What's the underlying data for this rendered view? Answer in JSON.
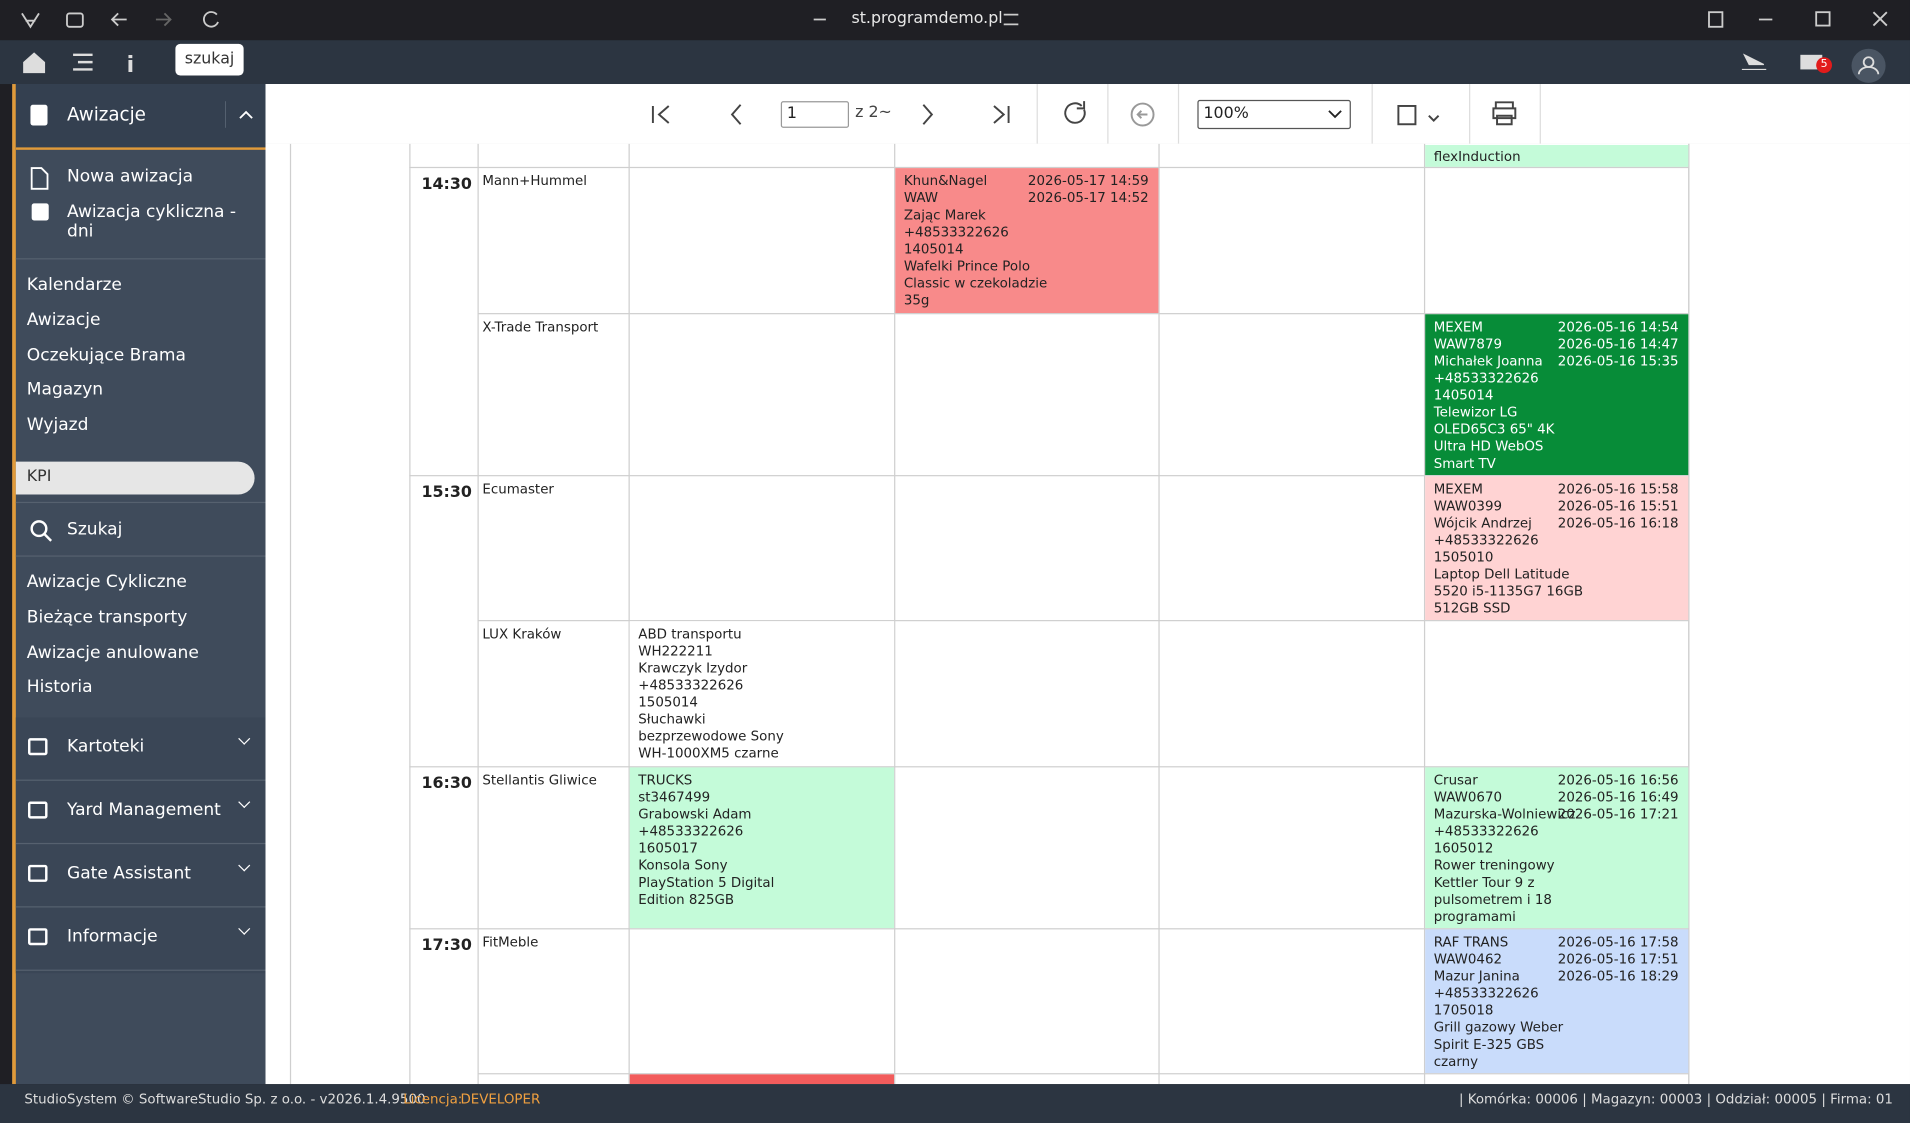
{
  "browser": {
    "url": "st.programdemo.pl"
  },
  "topbar": {
    "search": "szukaj",
    "mail_count": "5"
  },
  "sidebar": {
    "section": "Awizacje",
    "actions": [
      "Nowa awizacja",
      "Awizacja cykliczna - dni"
    ],
    "links": [
      "Kalendarze",
      "Awizacje",
      "Oczekujące Brama",
      "Magazyn",
      "Wyjazd"
    ],
    "kpi": "KPI",
    "search": "Szukaj",
    "links2": [
      "Awizacje Cykliczne",
      "Bieżące transporty",
      "Awizacje anulowane",
      "Historia"
    ],
    "groups": [
      "Kartoteki",
      "Yard Management",
      "Gate Assistant",
      "Informacje"
    ]
  },
  "toolbar": {
    "page": "1",
    "of": "z 2~",
    "zoom": "100%"
  },
  "schedule": {
    "rows": [
      {
        "time": null,
        "carrier": null,
        "cells": [
          null,
          null,
          null,
          {
            "color": "#c4fbd9",
            "lines": [
              "flexInduction"
            ],
            "times": []
          }
        ]
      },
      {
        "time": "14:30",
        "carrier": "Mann+Hummel",
        "cells": [
          null,
          {
            "color": "#f88a8a",
            "lines": [
              "Khun&Nagel",
              "WAW",
              "Zając Marek",
              "+48533322626",
              "1405014",
              "Wafelki Prince Polo",
              "Classic w czekoladzie",
              "35g"
            ],
            "times": [
              "2026-05-17 14:59",
              "2026-05-17 14:52"
            ]
          },
          null,
          null
        ]
      },
      {
        "time": null,
        "carrier": "X-Trade Transport",
        "cells": [
          null,
          null,
          null,
          {
            "color": "#078c38",
            "lines": [
              "MEXEM",
              "WAW7879",
              "Michałek Joanna",
              "+48533322626",
              "1405014",
              "Telewizor LG",
              "OLED65C3 65\" 4K",
              "Ultra HD WebOS",
              "Smart TV"
            ],
            "times": [
              "2026-05-16 14:54",
              "2026-05-16 14:47",
              "2026-05-16 15:35"
            ]
          }
        ]
      },
      {
        "time": "15:30",
        "carrier": "Ecumaster",
        "cells": [
          null,
          null,
          null,
          {
            "color": "#ffd3d3",
            "lines": [
              "MEXEM",
              "WAW0399",
              "Wójcik Andrzej",
              "+48533322626",
              "1505010",
              "Laptop Dell Latitude",
              "5520 i5-1135G7 16GB",
              "512GB SSD"
            ],
            "times": [
              "2026-05-16 15:58",
              "2026-05-16 15:51",
              "2026-05-16 16:18"
            ]
          }
        ]
      },
      {
        "time": null,
        "carrier": "LUX Kraków",
        "cells": [
          {
            "color": "#ffffff",
            "lines": [
              "ABD transportu",
              "WH222211",
              "Krawczyk Izydor",
              "+48533322626",
              "1505014",
              "Słuchawki",
              "bezprzewodowe Sony",
              "WH-1000XM5 czarne"
            ],
            "times": []
          },
          null,
          null,
          null
        ]
      },
      {
        "time": "16:30",
        "carrier": "Stellantis Gliwice",
        "cells": [
          {
            "color": "#c4fbd9",
            "lines": [
              "TRUCKS",
              "st3467499",
              "Grabowski Adam",
              "+48533322626",
              "1605017",
              "Konsola Sony",
              "PlayStation 5 Digital",
              "Edition 825GB"
            ],
            "times": []
          },
          null,
          null,
          {
            "color": "#c4fbd9",
            "lines": [
              "Crusar",
              "WAW0670",
              "Mazurska-Wolniewicz",
              "+48533322626",
              "1605012",
              "Rower treningowy",
              "Kettler Tour 9 z",
              "pulsometrem i 18",
              "programami"
            ],
            "times": [
              "2026-05-16 16:56",
              "2026-05-16 16:49",
              "2026-05-16 17:21"
            ]
          }
        ]
      },
      {
        "time": "17:30",
        "carrier": "FitMeble",
        "cells": [
          null,
          null,
          null,
          {
            "color": "#c9dcfb",
            "lines": [
              "RAF TRANS",
              "WAW0462",
              "Mazur Janina",
              "+48533322626",
              "1705018",
              "Grill gazowy Weber",
              "Spirit E-325 GBS",
              "czarny"
            ],
            "times": [
              "2026-05-16 17:58",
              "2026-05-16 17:51",
              "2026-05-16 18:29"
            ]
          }
        ]
      },
      {
        "time": null,
        "carrier": null,
        "cells": [
          {
            "color": "#f25c5c",
            "lines": [],
            "times": []
          },
          null,
          null,
          null
        ]
      }
    ]
  },
  "footer": {
    "copyright": "StudioSystem © SoftwareStudio Sp. z o.o. - v2026.1.4.9500",
    "license_label": "Licencja:",
    "license": "DEVELOPER",
    "status": "| Komórka: 00006 | Magazyn: 00003 | Oddział: 00005 | Firma: 01"
  }
}
